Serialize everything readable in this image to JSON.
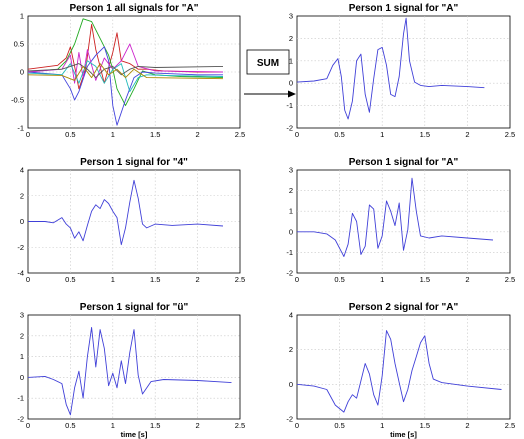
{
  "annotation": {
    "sum_label": "SUM"
  },
  "colors": {
    "signal": "#4040d8",
    "multi": [
      "#cc2222",
      "#22aa22",
      "#4444dd",
      "#cc22cc",
      "#22bbbb",
      "#555555",
      "#aa8800"
    ]
  },
  "chart_data": [
    {
      "type": "line",
      "title": "Person 1 all signals for \"A\"",
      "xlabel": "",
      "xlim": [
        0,
        2.5
      ],
      "ylim": [
        -1,
        1
      ],
      "xticks": [
        "0",
        "0.5",
        "1",
        "1.5",
        "2",
        "2.5"
      ],
      "yticks": [
        "-1",
        "-0.5",
        "0",
        "0.5",
        "1"
      ],
      "yvals": [
        -1,
        -0.5,
        0,
        0.5,
        1
      ],
      "series": [
        {
          "x": [
            0,
            0.35,
            0.45,
            0.5,
            0.55,
            0.6,
            0.68,
            0.75,
            0.8,
            0.9,
            1.0,
            1.05,
            1.1,
            1.2,
            1.3,
            1.4,
            1.6,
            2.0,
            2.3
          ],
          "y": [
            0.05,
            0.12,
            0.25,
            0.45,
            0.1,
            -0.3,
            0.05,
            0.85,
            0.4,
            -0.2,
            0.35,
            0.7,
            0.2,
            0.15,
            0.05,
            0.05,
            0.02,
            0.0,
            0.0
          ]
        },
        {
          "x": [
            0,
            0.35,
            0.45,
            0.55,
            0.65,
            0.75,
            0.85,
            0.95,
            1.0,
            1.05,
            1.15,
            1.25,
            1.35,
            1.5,
            1.8,
            2.3
          ],
          "y": [
            0.0,
            0.05,
            0.2,
            0.5,
            0.95,
            0.9,
            0.6,
            0.3,
            0.05,
            -0.3,
            -0.6,
            -0.3,
            0.02,
            -0.05,
            -0.08,
            -0.1
          ]
        },
        {
          "x": [
            0,
            0.4,
            0.5,
            0.55,
            0.6,
            0.7,
            0.8,
            0.9,
            0.95,
            1.0,
            1.05,
            1.15,
            1.25,
            1.35,
            1.5,
            2.0,
            2.3
          ],
          "y": [
            0.0,
            -0.05,
            -0.3,
            -0.5,
            -0.35,
            0.1,
            0.3,
            0.45,
            0.2,
            -0.6,
            -0.95,
            -0.5,
            -0.1,
            0.0,
            -0.02,
            -0.05,
            -0.05
          ]
        },
        {
          "x": [
            0,
            0.4,
            0.5,
            0.55,
            0.6,
            0.65,
            0.7,
            0.8,
            0.9,
            1.0,
            1.1,
            1.2,
            1.3,
            1.5,
            2.3
          ],
          "y": [
            0.0,
            0.05,
            0.3,
            -0.2,
            0.35,
            -0.1,
            0.4,
            -0.15,
            0.25,
            0.05,
            0.2,
            0.5,
            0.1,
            0.02,
            0.0
          ]
        },
        {
          "x": [
            0,
            0.4,
            0.5,
            0.6,
            0.7,
            0.8,
            0.9,
            1.0,
            1.1,
            1.2,
            1.3,
            1.4,
            1.6,
            2.3
          ],
          "y": [
            -0.02,
            -0.05,
            0.15,
            -0.2,
            0.2,
            0.1,
            -0.2,
            0.05,
            0.15,
            -0.35,
            -0.1,
            -0.05,
            -0.06,
            -0.08
          ]
        },
        {
          "x": [
            0,
            0.4,
            0.5,
            0.6,
            0.7,
            0.8,
            0.9,
            1.0,
            1.1,
            1.2,
            1.3,
            1.5,
            2.3
          ],
          "y": [
            0.02,
            0.05,
            0.1,
            0.15,
            0.05,
            -0.1,
            0.05,
            0.1,
            -0.05,
            0.05,
            0.1,
            0.08,
            0.1
          ]
        },
        {
          "x": [
            0,
            0.4,
            0.55,
            0.65,
            0.75,
            0.85,
            0.95,
            1.05,
            1.15,
            1.25,
            1.4,
            2.3
          ],
          "y": [
            -0.05,
            -0.06,
            -0.15,
            0.1,
            -0.1,
            0.15,
            -0.05,
            0.05,
            -0.1,
            0.05,
            -0.1,
            -0.12
          ]
        }
      ]
    },
    {
      "type": "line",
      "title": "Person 1 signal for \"A\"",
      "xlabel": "",
      "xlim": [
        0,
        2.5
      ],
      "ylim": [
        -2,
        3
      ],
      "xticks": [
        "0",
        "0.5",
        "1",
        "1.5",
        "2",
        "2.5"
      ],
      "yticks": [
        "-2",
        "-1",
        "0",
        "1",
        "2",
        "3"
      ],
      "yvals": [
        -2,
        -1,
        0,
        1,
        2,
        3
      ],
      "series": [
        {
          "x": [
            0,
            0.2,
            0.35,
            0.42,
            0.48,
            0.52,
            0.56,
            0.6,
            0.65,
            0.7,
            0.75,
            0.8,
            0.85,
            0.9,
            0.95,
            1.0,
            1.05,
            1.1,
            1.15,
            1.2,
            1.25,
            1.28,
            1.32,
            1.38,
            1.45,
            1.55,
            1.7,
            2.0,
            2.2
          ],
          "y": [
            0.05,
            0.1,
            0.2,
            0.8,
            1.1,
            0.3,
            -1.2,
            -1.6,
            -0.8,
            1.0,
            1.3,
            -0.5,
            -1.3,
            0.2,
            1.5,
            1.6,
            0.8,
            -0.5,
            -0.6,
            0.3,
            2.2,
            2.9,
            1.0,
            0.05,
            -0.1,
            -0.15,
            -0.1,
            -0.15,
            -0.2
          ]
        }
      ]
    },
    {
      "type": "line",
      "title": "Person 1 signal for \"4\"",
      "xlabel": "",
      "xlim": [
        0,
        2.5
      ],
      "ylim": [
        -4,
        4
      ],
      "xticks": [
        "0",
        "0.5",
        "1",
        "1.5",
        "2",
        "2.5"
      ],
      "yticks": [
        "-4",
        "-2",
        "0",
        "2",
        "4"
      ],
      "yvals": [
        -4,
        -2,
        0,
        2,
        4
      ],
      "series": [
        {
          "x": [
            0,
            0.2,
            0.3,
            0.4,
            0.45,
            0.5,
            0.55,
            0.6,
            0.65,
            0.7,
            0.75,
            0.8,
            0.85,
            0.9,
            0.95,
            1.0,
            1.05,
            1.1,
            1.15,
            1.2,
            1.25,
            1.3,
            1.35,
            1.4,
            1.5,
            1.7,
            2.0,
            2.3
          ],
          "y": [
            0.0,
            0.0,
            -0.1,
            0.3,
            -0.2,
            -0.5,
            -1.3,
            -0.8,
            -1.5,
            -0.3,
            0.8,
            1.3,
            1.0,
            1.7,
            1.4,
            0.8,
            0.3,
            -1.8,
            -0.5,
            1.5,
            3.2,
            1.8,
            -0.2,
            -0.5,
            -0.2,
            -0.3,
            -0.2,
            -0.35
          ]
        }
      ]
    },
    {
      "type": "line",
      "title": "Person 1 signal for \"A\"",
      "xlabel": "",
      "xlim": [
        0,
        2.5
      ],
      "ylim": [
        -2,
        3
      ],
      "xticks": [
        "0",
        "0.5",
        "1",
        "1.5",
        "2",
        "2.5"
      ],
      "yticks": [
        "-2",
        "-1",
        "0",
        "1",
        "2",
        "3"
      ],
      "yvals": [
        -2,
        -1,
        0,
        1,
        2,
        3
      ],
      "series": [
        {
          "x": [
            0,
            0.2,
            0.35,
            0.45,
            0.55,
            0.6,
            0.65,
            0.7,
            0.75,
            0.8,
            0.85,
            0.9,
            0.95,
            1.0,
            1.05,
            1.1,
            1.15,
            1.2,
            1.25,
            1.3,
            1.35,
            1.4,
            1.45,
            1.55,
            1.7,
            2.0,
            2.3
          ],
          "y": [
            0.0,
            0.0,
            -0.1,
            -0.4,
            -1.2,
            -0.6,
            0.9,
            0.5,
            -1.1,
            -0.7,
            1.3,
            1.1,
            -0.8,
            -0.2,
            1.5,
            1.0,
            0.3,
            1.4,
            -0.9,
            0.1,
            2.6,
            1.0,
            -0.2,
            -0.3,
            -0.2,
            -0.3,
            -0.4
          ]
        }
      ]
    },
    {
      "type": "line",
      "title": "Person 1 signal for \"ü\"",
      "xlabel": "time [s]",
      "xlim": [
        0,
        2.5
      ],
      "ylim": [
        -2,
        3
      ],
      "xticks": [
        "0",
        "0.5",
        "1",
        "1.5",
        "2",
        "2.5"
      ],
      "yticks": [
        "-2",
        "-1",
        "0",
        "1",
        "2",
        "3"
      ],
      "yvals": [
        -2,
        -1,
        0,
        1,
        2,
        3
      ],
      "series": [
        {
          "x": [
            0,
            0.2,
            0.3,
            0.4,
            0.45,
            0.5,
            0.55,
            0.6,
            0.65,
            0.7,
            0.75,
            0.8,
            0.85,
            0.9,
            0.95,
            1.0,
            1.05,
            1.1,
            1.15,
            1.2,
            1.25,
            1.3,
            1.35,
            1.45,
            1.6,
            2.0,
            2.4
          ],
          "y": [
            0.0,
            0.05,
            -0.1,
            -0.3,
            -1.3,
            -1.8,
            -0.5,
            0.3,
            -1.0,
            1.0,
            2.4,
            0.5,
            2.3,
            1.4,
            -0.4,
            0.2,
            -0.5,
            0.8,
            -0.3,
            1.2,
            2.3,
            0.1,
            -0.8,
            -0.2,
            -0.1,
            -0.15,
            -0.25
          ]
        }
      ]
    },
    {
      "type": "line",
      "title": "Person 2 signal for \"A\"",
      "xlabel": "time [s]",
      "xlim": [
        0,
        2.5
      ],
      "ylim": [
        -2,
        4
      ],
      "xticks": [
        "0",
        "0.5",
        "1",
        "1.5",
        "2",
        "2.5"
      ],
      "yticks": [
        "-2",
        "0",
        "2",
        "4"
      ],
      "yvals": [
        -2,
        0,
        2,
        4
      ],
      "series": [
        {
          "x": [
            0,
            0.2,
            0.35,
            0.45,
            0.55,
            0.6,
            0.65,
            0.7,
            0.75,
            0.8,
            0.85,
            0.9,
            0.95,
            1.0,
            1.05,
            1.1,
            1.15,
            1.2,
            1.25,
            1.3,
            1.35,
            1.4,
            1.45,
            1.5,
            1.55,
            1.6,
            1.7,
            2.0,
            2.4
          ],
          "y": [
            0.0,
            -0.1,
            -0.3,
            -1.2,
            -1.6,
            -1.0,
            -0.6,
            -0.8,
            0.2,
            1.2,
            0.6,
            -0.6,
            -1.2,
            0.5,
            3.1,
            2.6,
            1.2,
            0.1,
            -1.0,
            -0.3,
            0.8,
            1.6,
            2.4,
            2.8,
            1.2,
            0.3,
            0.1,
            -0.1,
            -0.3
          ]
        }
      ]
    }
  ]
}
